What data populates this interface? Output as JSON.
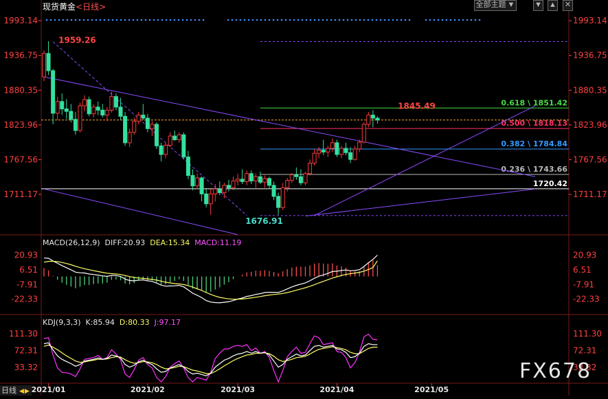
{
  "header": {
    "instrument": "现货黄金",
    "timeframe": "<日线>",
    "theme_label": "全部主题",
    "theme_arrow": "▼"
  },
  "watermark": "FX678",
  "bottom_tab": "日线",
  "macd": {
    "title": "MACD(26,12,9)",
    "diff_label": "DIFF:20.93",
    "dea_label": "DEA:15.34",
    "macd_label": "MACD:11.19"
  },
  "kdj": {
    "title": "KDJ(9,3,3)",
    "k_label": "K:85.94",
    "d_label": "D:80.33",
    "j_label": "J:97.17"
  },
  "colors": {
    "up": "#ff3b3b",
    "down": "#33e0a0",
    "bg": "#000000",
    "axis": "#ff4040",
    "diff": "#ffffff",
    "dea": "#ffff66",
    "macd_hist_up": "#ff4d4d",
    "macd_hist_down": "#4fd07a",
    "k": "#ffffff",
    "d": "#ffff66",
    "j": "#ff33ff",
    "trend": "#8a4dff"
  },
  "chart_data": [
    {
      "type": "candlestick",
      "title": "现货黄金 日线",
      "x_ticks": [
        "2021/01",
        "2021/02",
        "2021/03",
        "2021/04",
        "2021/05"
      ],
      "x_tick_index": [
        1,
        23,
        43,
        65,
        86
      ],
      "y_ticks": [
        1993.14,
        1936.75,
        1880.35,
        1823.96,
        1767.56,
        1711.17
      ],
      "ylim": [
        1650,
        2000
      ],
      "current_price_line": 1832,
      "annotations": [
        {
          "text": "1959.26",
          "kind": "high",
          "price": 1959.26,
          "index": 2
        },
        {
          "text": "1676.91",
          "kind": "low",
          "price": 1676.91,
          "index": 45
        },
        {
          "text": "1845.49",
          "kind": "recent-high",
          "price": 1845.49,
          "index": 89
        },
        {
          "text": "1720.42",
          "kind": "level",
          "price": 1720.42
        }
      ],
      "fibonacci": [
        {
          "label": "0.618 \\ 1851.42",
          "ratio": 0.618,
          "price": 1851.42,
          "color": "#44dd44"
        },
        {
          "label": "0.500 \\ 1818.13",
          "ratio": 0.5,
          "price": 1818.13,
          "color": "#ff3366"
        },
        {
          "label": "0.382 \\ 1784.84",
          "ratio": 0.382,
          "price": 1784.84,
          "color": "#3399ff"
        },
        {
          "label": "0.236 \\ 1743.66",
          "ratio": 0.236,
          "price": 1743.66,
          "color": "#bbbbbb"
        }
      ],
      "fib_range": [
        1676.91,
        1959.26
      ],
      "trendlines": [
        {
          "from": [
            0,
            1902
          ],
          "to": [
            109,
            1740
          ],
          "name": "upper-downtrend-line"
        },
        {
          "from": [
            0,
            1720
          ],
          "to": [
            43,
            1646
          ],
          "name": "lower-downtrend-line"
        },
        {
          "from": [
            60,
            1677
          ],
          "to": [
            109,
            1855
          ],
          "name": "rising-support-line"
        },
        {
          "from": [
            58,
            1676
          ],
          "to": [
            109,
            1720
          ],
          "name": "long-term-rising-line"
        }
      ],
      "top_dots": true,
      "candles": [
        [
          1902,
          1945,
          1895,
          1940
        ],
        [
          1940,
          1960,
          1905,
          1912
        ],
        [
          1912,
          1915,
          1825,
          1843
        ],
        [
          1843,
          1870,
          1832,
          1862
        ],
        [
          1862,
          1875,
          1840,
          1850
        ],
        [
          1850,
          1866,
          1834,
          1846
        ],
        [
          1846,
          1858,
          1828,
          1833
        ],
        [
          1833,
          1845,
          1808,
          1815
        ],
        [
          1815,
          1860,
          1812,
          1855
        ],
        [
          1855,
          1872,
          1846,
          1865
        ],
        [
          1865,
          1870,
          1838,
          1842
        ],
        [
          1842,
          1858,
          1836,
          1853
        ],
        [
          1853,
          1862,
          1840,
          1848
        ],
        [
          1848,
          1858,
          1836,
          1840
        ],
        [
          1840,
          1853,
          1830,
          1848
        ],
        [
          1848,
          1878,
          1844,
          1870
        ],
        [
          1870,
          1875,
          1848,
          1853
        ],
        [
          1853,
          1868,
          1832,
          1838
        ],
        [
          1838,
          1845,
          1790,
          1795
        ],
        [
          1795,
          1818,
          1788,
          1812
        ],
        [
          1812,
          1836,
          1808,
          1830
        ],
        [
          1830,
          1845,
          1825,
          1840
        ],
        [
          1840,
          1858,
          1832,
          1835
        ],
        [
          1835,
          1842,
          1812,
          1818
        ],
        [
          1818,
          1830,
          1806,
          1825
        ],
        [
          1825,
          1828,
          1785,
          1790
        ],
        [
          1790,
          1795,
          1765,
          1776
        ],
        [
          1776,
          1795,
          1770,
          1791
        ],
        [
          1791,
          1812,
          1788,
          1806
        ],
        [
          1806,
          1815,
          1798,
          1800
        ],
        [
          1800,
          1812,
          1795,
          1808
        ],
        [
          1808,
          1812,
          1768,
          1772
        ],
        [
          1772,
          1782,
          1736,
          1742
        ],
        [
          1742,
          1752,
          1718,
          1725
        ],
        [
          1725,
          1745,
          1720,
          1738
        ],
        [
          1738,
          1740,
          1700,
          1712
        ],
        [
          1712,
          1720,
          1690,
          1696
        ],
        [
          1696,
          1720,
          1678,
          1712
        ],
        [
          1712,
          1728,
          1700,
          1720
        ],
        [
          1720,
          1732,
          1710,
          1714
        ],
        [
          1714,
          1730,
          1705,
          1726
        ],
        [
          1726,
          1735,
          1716,
          1722
        ],
        [
          1722,
          1740,
          1718,
          1733
        ],
        [
          1733,
          1745,
          1726,
          1736
        ],
        [
          1736,
          1752,
          1728,
          1732
        ],
        [
          1732,
          1750,
          1726,
          1745
        ],
        [
          1745,
          1750,
          1728,
          1733
        ],
        [
          1733,
          1745,
          1722,
          1740
        ],
        [
          1740,
          1748,
          1728,
          1731
        ],
        [
          1731,
          1742,
          1722,
          1737
        ],
        [
          1737,
          1740,
          1720,
          1726
        ],
        [
          1726,
          1732,
          1702,
          1708
        ],
        [
          1708,
          1714,
          1678,
          1690
        ],
        [
          1690,
          1730,
          1686,
          1722
        ],
        [
          1722,
          1738,
          1716,
          1734
        ],
        [
          1734,
          1746,
          1730,
          1743
        ],
        [
          1743,
          1755,
          1735,
          1740
        ],
        [
          1740,
          1752,
          1726,
          1730
        ],
        [
          1730,
          1748,
          1726,
          1745
        ],
        [
          1745,
          1768,
          1742,
          1762
        ],
        [
          1762,
          1785,
          1758,
          1778
        ],
        [
          1778,
          1788,
          1770,
          1783
        ],
        [
          1783,
          1800,
          1775,
          1780
        ],
        [
          1780,
          1790,
          1772,
          1786
        ],
        [
          1786,
          1802,
          1780,
          1795
        ],
        [
          1795,
          1800,
          1772,
          1776
        ],
        [
          1776,
          1790,
          1770,
          1786
        ],
        [
          1786,
          1795,
          1775,
          1779
        ],
        [
          1779,
          1788,
          1762,
          1768
        ],
        [
          1768,
          1790,
          1766,
          1785
        ],
        [
          1785,
          1800,
          1780,
          1796
        ],
        [
          1796,
          1828,
          1794,
          1825
        ],
        [
          1825,
          1845,
          1820,
          1840
        ],
        [
          1840,
          1848,
          1820,
          1835
        ],
        [
          1835,
          1838,
          1826,
          1832
        ]
      ]
    },
    {
      "type": "macd",
      "params": "MACD(26,12,9)",
      "latest": {
        "DIFF": 20.93,
        "DEA": 15.34,
        "MACD": 11.19
      },
      "y_ticks": [
        20.93,
        6.51,
        -7.91,
        -22.33
      ],
      "ylim": [
        -36,
        30
      ],
      "diff": [
        18.1,
        17.8,
        15.2,
        12.9,
        10.6,
        8.6,
        6.5,
        4.2,
        3.6,
        3.4,
        2.4,
        1.9,
        1.3,
        0.5,
        0.1,
        1.0,
        0.9,
        0.0,
        -2.6,
        -4.0,
        -4.3,
        -3.6,
        -3.5,
        -4.3,
        -4.8,
        -6.5,
        -8.5,
        -9.5,
        -9.3,
        -9.2,
        -8.8,
        -10.2,
        -13.2,
        -16.5,
        -18.4,
        -20.8,
        -23.7,
        -25.1,
        -25.6,
        -25.8,
        -25.3,
        -24.8,
        -23.6,
        -22.2,
        -21.2,
        -19.6,
        -18.8,
        -17.6,
        -16.9,
        -15.8,
        -15.5,
        -15.5,
        -15.7,
        -14.2,
        -12.2,
        -10.3,
        -8.7,
        -7.5,
        -6.3,
        -4.3,
        -1.8,
        0.2,
        1.5,
        3.0,
        4.8,
        5.1,
        5.9,
        6.3,
        5.6,
        5.8,
        6.6,
        9.8,
        13.4,
        16.7,
        20.9
      ],
      "dea": [
        14.0,
        14.8,
        14.9,
        14.5,
        13.7,
        12.7,
        11.5,
        10.0,
        8.7,
        7.6,
        6.6,
        5.7,
        4.8,
        4.0,
        3.2,
        2.7,
        2.4,
        1.9,
        0.9,
        -0.1,
        -1.0,
        -1.5,
        -1.9,
        -2.4,
        -2.9,
        -3.6,
        -4.6,
        -5.6,
        -6.4,
        -7.0,
        -7.4,
        -8.0,
        -9.0,
        -10.5,
        -12.1,
        -13.8,
        -15.8,
        -17.6,
        -19.2,
        -20.5,
        -21.3,
        -22.0,
        -22.3,
        -22.3,
        -22.1,
        -21.6,
        -21.1,
        -20.4,
        -19.7,
        -18.9,
        -18.2,
        -17.7,
        -17.3,
        -16.7,
        -15.8,
        -14.7,
        -13.5,
        -12.3,
        -11.1,
        -9.7,
        -8.1,
        -6.4,
        -4.8,
        -3.2,
        -1.6,
        -0.3,
        0.9,
        2.0,
        2.7,
        3.3,
        4.0,
        5.2,
        6.8,
        8.8,
        15.3
      ]
    },
    {
      "type": "kdj",
      "params": "KDJ(9,3,3)",
      "latest": {
        "K": 85.94,
        "D": 80.33,
        "J": 97.17
      },
      "y_ticks": [
        111.3,
        72.31,
        33.32
      ],
      "ylim": [
        0,
        130
      ],
      "k": [
        88,
        90,
        74,
        60,
        52,
        47,
        42,
        36,
        40,
        48,
        50,
        52,
        55,
        52,
        54,
        62,
        60,
        55,
        40,
        34,
        38,
        46,
        50,
        44,
        40,
        30,
        22,
        24,
        32,
        36,
        40,
        34,
        24,
        18,
        20,
        17,
        14,
        20,
        34,
        42,
        50,
        54,
        60,
        64,
        66,
        70,
        66,
        70,
        66,
        68,
        62,
        48,
        34,
        40,
        52,
        58,
        64,
        60,
        62,
        72,
        82,
        84,
        80,
        82,
        84,
        76,
        74,
        68,
        56,
        58,
        66,
        82,
        88,
        86,
        86
      ],
      "d": [
        82,
        85,
        80,
        74,
        67,
        60,
        54,
        48,
        45,
        46,
        48,
        50,
        52,
        52,
        53,
        56,
        58,
        57,
        51,
        46,
        43,
        44,
        47,
        46,
        44,
        40,
        34,
        30,
        31,
        33,
        36,
        35,
        31,
        27,
        25,
        22,
        19,
        19,
        24,
        30,
        37,
        43,
        49,
        54,
        58,
        62,
        63,
        66,
        66,
        67,
        65,
        59,
        51,
        47,
        49,
        52,
        56,
        57,
        59,
        64,
        70,
        75,
        77,
        79,
        81,
        79,
        77,
        74,
        68,
        65,
        65,
        71,
        77,
        80,
        80
      ],
      "j": [
        100,
        102,
        62,
        32,
        22,
        21,
        18,
        12,
        30,
        52,
        54,
        56,
        61,
        52,
        56,
        74,
        64,
        51,
        18,
        10,
        28,
        50,
        56,
        40,
        32,
        10,
        0,
        12,
        34,
        42,
        48,
        32,
        10,
        0,
        10,
        7,
        4,
        22,
        54,
        66,
        76,
        76,
        82,
        84,
        82,
        86,
        72,
        78,
        66,
        70,
        56,
        26,
        0,
        26,
        58,
        70,
        80,
        66,
        68,
        88,
        106,
        102,
        86,
        88,
        90,
        70,
        68,
        56,
        32,
        44,
        68,
        104,
        110,
        98,
        97
      ]
    }
  ]
}
